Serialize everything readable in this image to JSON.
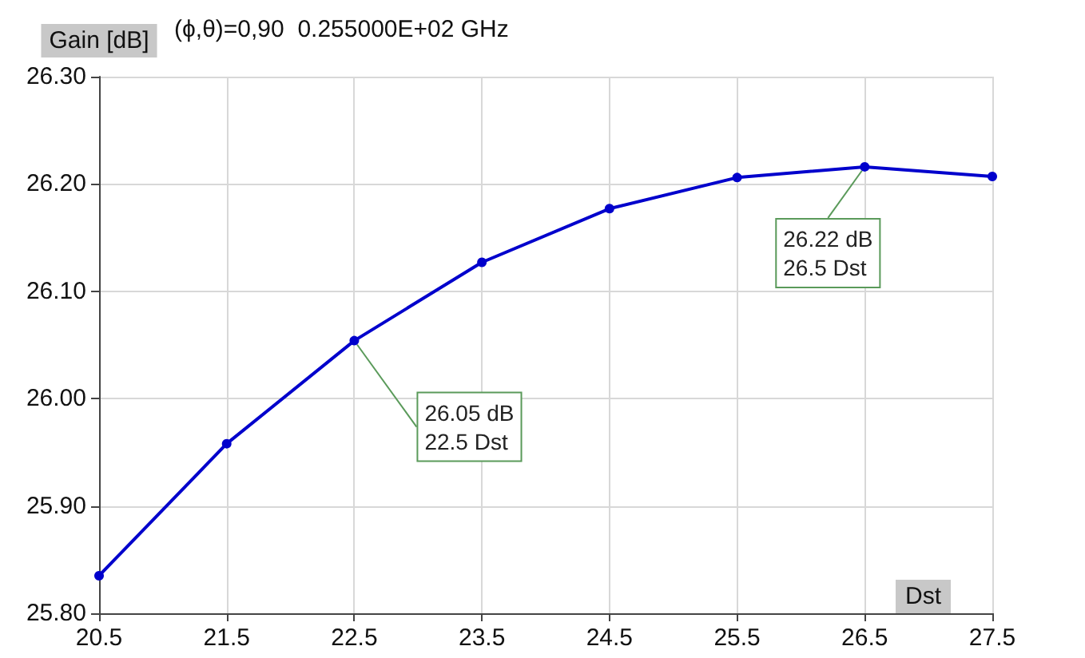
{
  "chart_data": {
    "type": "line",
    "title": "(ϕ,θ)=0,90  0.255000E+02 GHz",
    "xlabel": "Dst",
    "ylabel": "Gain [dB]",
    "x": [
      20.5,
      21.5,
      22.5,
      23.5,
      24.5,
      25.5,
      26.5,
      27.5
    ],
    "series": [
      {
        "color": "#0000cc",
        "values": [
          25.835,
          25.958,
          26.054,
          26.127,
          26.177,
          26.206,
          26.216,
          26.207
        ]
      }
    ],
    "xlim": [
      20.5,
      27.5
    ],
    "xticks": [
      20.5,
      21.5,
      22.5,
      23.5,
      24.5,
      25.5,
      26.5,
      27.5
    ],
    "ylim": [
      25.8,
      26.3
    ],
    "yticks": [
      {
        "value": 25.8,
        "label": "25.80"
      },
      {
        "value": 25.9,
        "label": "25.90"
      },
      {
        "value": 26.0,
        "label": "26.00"
      },
      {
        "value": 26.1,
        "label": "26.10"
      },
      {
        "value": 26.2,
        "label": "26.20"
      },
      {
        "value": 26.3,
        "label": "26.30"
      }
    ],
    "annotations": [
      {
        "text": "26.05 dB\n22.5 Dst",
        "x": 22.5,
        "y": 26.054
      },
      {
        "text": "26.22 dB\n26.5 Dst",
        "x": 26.5,
        "y": 26.216
      }
    ],
    "grid": true,
    "marker": "circle",
    "line_style": "solid"
  }
}
